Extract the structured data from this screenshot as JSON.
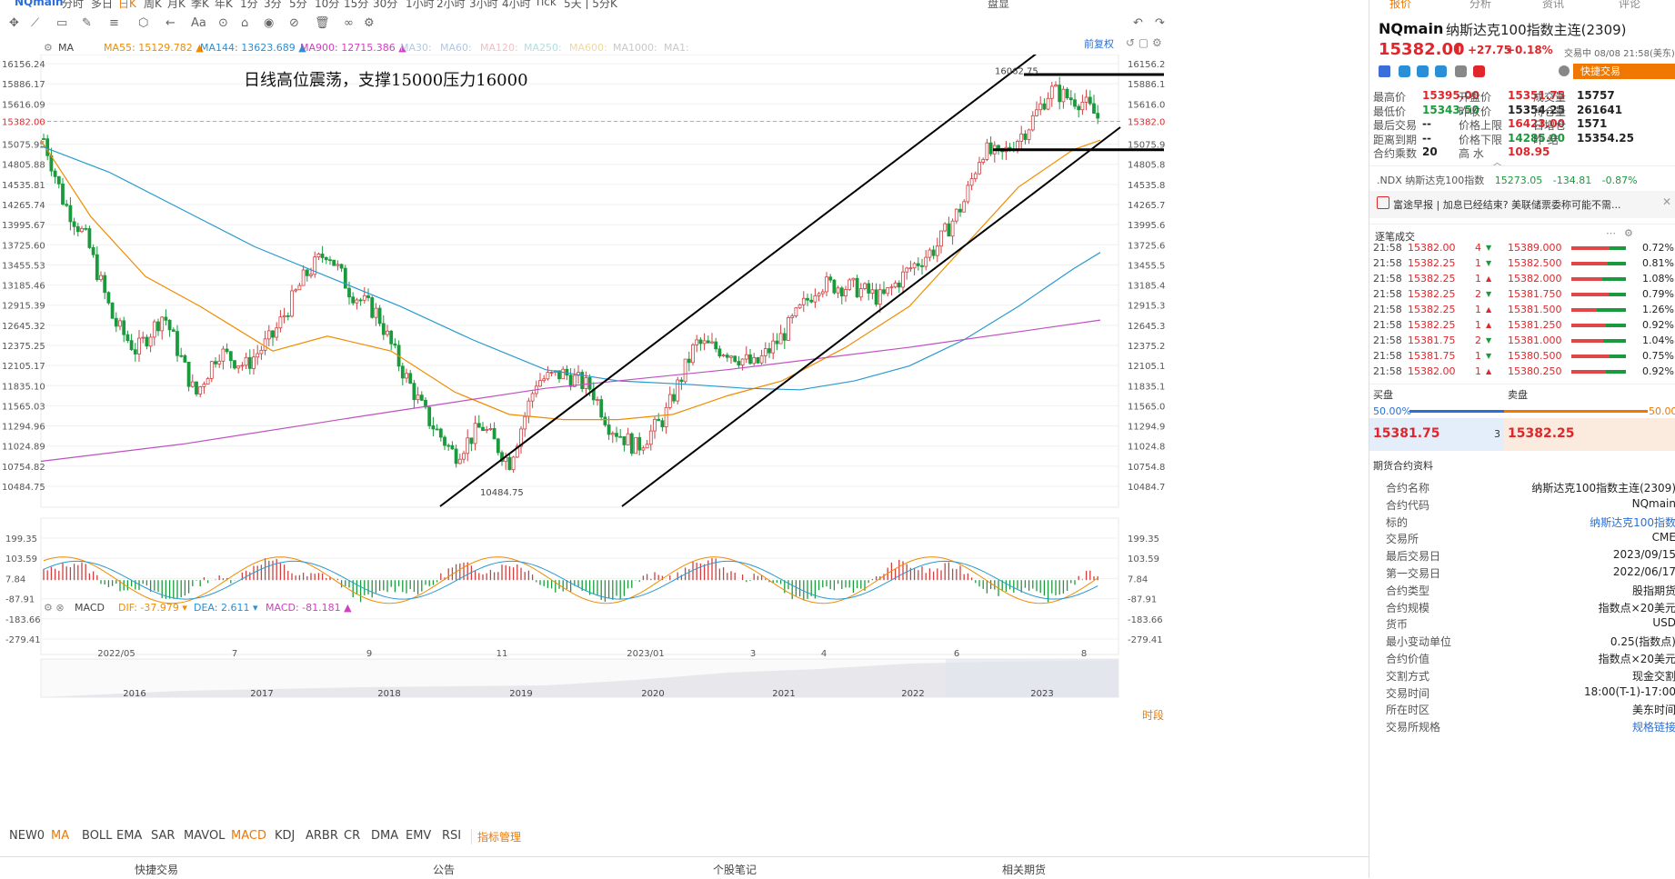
{
  "top_menu": [
    "NQmain",
    "分时",
    "多日",
    "日K",
    "周K",
    "月K",
    "季K",
    "年K",
    "1分",
    "3分",
    "5分",
    "10分",
    "15分",
    "30分",
    "1小时",
    "2小时",
    "3小时",
    "4小时",
    "Tick",
    "5天 | 5分K",
    "盘显"
  ],
  "chart": {
    "ma_label": "MA",
    "ma": [
      {
        "name": "MA55:",
        "value": "15129.782",
        "color": "#f08c00"
      },
      {
        "name": "MA144:",
        "value": "13623.689",
        "color": "#2a8fd6"
      },
      {
        "name": "MA900:",
        "value": "12715.386",
        "color": "#d040c0"
      },
      {
        "name": "MA30:",
        "value": "",
        "color": "#b0c8e8"
      },
      {
        "name": "MA60:",
        "value": "",
        "color": "#b0c8e8"
      },
      {
        "name": "MA120:",
        "value": "",
        "color": "#f0c0c8"
      },
      {
        "name": "MA250:",
        "value": "",
        "color": "#b0e0e0"
      },
      {
        "name": "MA600:",
        "value": "",
        "color": "#f0d8a0"
      },
      {
        "name": "MA1000:",
        "value": "",
        "color": "#c8c8c8"
      },
      {
        "name": "MA1:",
        "value": "",
        "color": "#c8c8c8"
      }
    ],
    "restore_label": "前复权",
    "annotation": "日线高位震荡，支撑15000压力16000",
    "price_ticks": [
      "16156.24",
      "15886.17",
      "15616.09",
      "15382.00",
      "15075.95",
      "14805.88",
      "14535.81",
      "14265.74",
      "13995.67",
      "13725.60",
      "13455.53",
      "13185.46",
      "12915.39",
      "12645.32",
      "12375.25",
      "12105.17",
      "11835.10",
      "11565.03",
      "11294.96",
      "11024.89",
      "10754.82",
      "10484.75"
    ],
    "current_price_tag": "15382.00",
    "high_label": "16062.75",
    "low_label": "10484.75",
    "macd_label": "MACD",
    "macd_values": [
      {
        "name": "DIF:",
        "value": "-37.979",
        "color": "#f08c00"
      },
      {
        "name": "DEA:",
        "value": "2.611",
        "color": "#2a8fd6"
      },
      {
        "name": "MACD:",
        "value": "-81.181",
        "color": "#d040c0"
      }
    ],
    "macd_ticks": [
      "199.35",
      "103.59",
      "7.84",
      "-87.91",
      "-183.66",
      "-279.41"
    ],
    "date_ticks": [
      "2022/05",
      "7",
      "9",
      "11",
      "2023/01",
      "3",
      "4",
      "6",
      "8"
    ],
    "year_ticks": [
      "2016",
      "2017",
      "2018",
      "2019",
      "2020",
      "2021",
      "2022",
      "2023"
    ]
  },
  "indicator_tabs": [
    "NEW0",
    "MA",
    "BOLL",
    "EMA",
    "SAR",
    "MAVOL",
    "MACD",
    "KDJ",
    "ARBR",
    "CR",
    "DMA",
    "EMV",
    "RSI",
    "指标管理"
  ],
  "timeframe_btn": "时段",
  "bottom_tabs": [
    "快捷交易",
    "公告",
    "个股笔记",
    "相关期货"
  ],
  "right": {
    "tabs": [
      "报价",
      "分析",
      "资讯",
      "评论"
    ],
    "symbol": "NQmain",
    "name": "纳斯达克100指数主连(2309)",
    "price": "15382.00",
    "arrow": "⬆",
    "change": "+27.75",
    "change_pct": "+0.18%",
    "trade_time": "交易中 08/08 21:58(美东)",
    "quick_trade_btn": "快捷交易",
    "quote": [
      {
        "k": "最高价",
        "v": "15395.00",
        "c": "red"
      },
      {
        "k": "开盘价",
        "v": "15351.75",
        "c": "red"
      },
      {
        "k": "成交量",
        "v": "15757",
        "c": "dark"
      },
      {
        "k": "最低价",
        "v": "15343.50",
        "c": "green"
      },
      {
        "k": "昨收价",
        "v": "15354.25",
        "c": "dark"
      },
      {
        "k": "持仓量",
        "v": "261641",
        "c": "dark"
      },
      {
        "k": "最后交易",
        "v": "--",
        "c": "dark"
      },
      {
        "k": "价格上限",
        "v": "16423.00",
        "c": "red"
      },
      {
        "k": "日增仓",
        "v": "1571",
        "c": "dark"
      },
      {
        "k": "距离到期",
        "v": "--",
        "c": "dark"
      },
      {
        "k": "价格下限",
        "v": "14285.00",
        "c": "green"
      },
      {
        "k": "昨 结",
        "v": "15354.25",
        "c": "dark"
      },
      {
        "k": "合约乘数",
        "v": "20",
        "c": "dark"
      },
      {
        "k": "高 水",
        "v": "108.95",
        "c": "red"
      }
    ],
    "ndx": {
      "name": ".NDX 纳斯达克100指数",
      "price": "15273.05",
      "chg": "-134.81",
      "pct": "-0.87%"
    },
    "news": "富途早报 | 加息已经结束? 美联储票委称可能不需...",
    "trades_title": "逐笔成交",
    "trades": [
      {
        "t": "21:58",
        "p": "15382.00",
        "q": "4",
        "d": "▼"
      },
      {
        "t": "21:58",
        "p": "15382.25",
        "q": "1",
        "d": "▼"
      },
      {
        "t": "21:58",
        "p": "15382.25",
        "q": "1",
        "d": "▲"
      },
      {
        "t": "21:58",
        "p": "15382.25",
        "q": "2",
        "d": "▼"
      },
      {
        "t": "21:58",
        "p": "15382.25",
        "q": "1",
        "d": "▲"
      },
      {
        "t": "21:58",
        "p": "15382.25",
        "q": "1",
        "d": "▲"
      },
      {
        "t": "21:58",
        "p": "15381.75",
        "q": "2",
        "d": "▼"
      },
      {
        "t": "21:58",
        "p": "15381.75",
        "q": "1",
        "d": "▼"
      },
      {
        "t": "21:58",
        "p": "15382.00",
        "q": "1",
        "d": "▲"
      }
    ],
    "dist": [
      {
        "p": "15389.000",
        "pct": "0.72%",
        "r": 0.45
      },
      {
        "p": "15382.500",
        "pct": "0.81%",
        "r": 0.5
      },
      {
        "p": "15382.000",
        "pct": "1.08%",
        "r": 0.65
      },
      {
        "p": "15381.750",
        "pct": "0.79%",
        "r": 0.48
      },
      {
        "p": "15381.500",
        "pct": "1.26%",
        "r": 0.8
      },
      {
        "p": "15381.250",
        "pct": "0.92%",
        "r": 0.55
      },
      {
        "p": "15381.000",
        "pct": "1.04%",
        "r": 0.62
      },
      {
        "p": "15380.500",
        "pct": "0.75%",
        "r": 0.46
      },
      {
        "p": "15380.250",
        "pct": "0.92%",
        "r": 0.55
      }
    ],
    "bid_label": "买盘",
    "ask_label": "卖盘",
    "bid_pct": "50.00%",
    "ask_pct": "50.00%",
    "bid_price": "15381.75",
    "bid_qty": "3",
    "ask_price": "15382.25",
    "contract_title": "期货合约资料",
    "contract": [
      {
        "k": "合约名称",
        "v": "纳斯达克100指数主连(2309)"
      },
      {
        "k": "合约代码",
        "v": "NQmain"
      },
      {
        "k": "标的",
        "v": "纳斯达克100指数",
        "link": true
      },
      {
        "k": "交易所",
        "v": "CME"
      },
      {
        "k": "最后交易日",
        "v": "2023/09/15"
      },
      {
        "k": "第一交易日",
        "v": "2022/06/17"
      },
      {
        "k": "合约类型",
        "v": "股指期货"
      },
      {
        "k": "合约规模",
        "v": "指数点×20美元"
      },
      {
        "k": "货币",
        "v": "USD"
      },
      {
        "k": "最小变动单位",
        "v": "0.25(指数点)"
      },
      {
        "k": "合约价值",
        "v": "指数点×20美元"
      },
      {
        "k": "交割方式",
        "v": "现金交割"
      },
      {
        "k": "交易时间",
        "v": "18:00(T-1)-17:00"
      },
      {
        "k": "所在时区",
        "v": "美东时间"
      },
      {
        "k": "交易所规格",
        "v": "规格链接",
        "link": true
      }
    ]
  },
  "colors": {
    "up": "#e0262b",
    "down": "#1a9a3c",
    "accent": "#2a6fd6",
    "orange": "#f07800"
  }
}
